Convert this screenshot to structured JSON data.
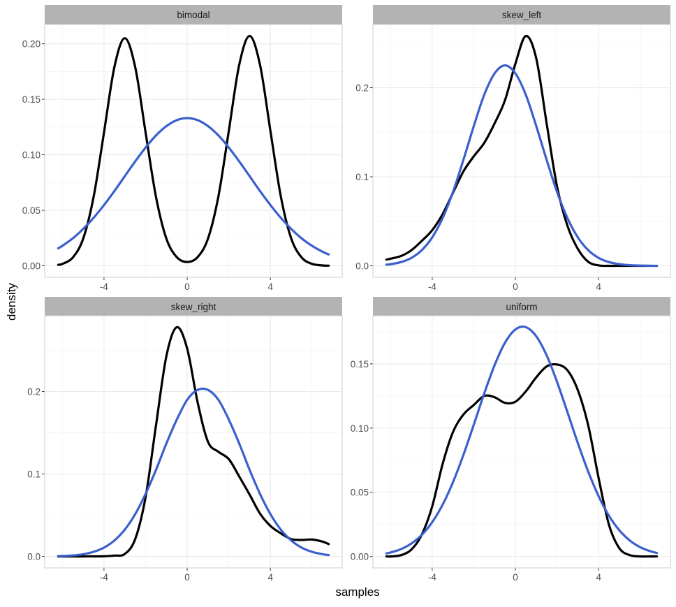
{
  "chart_data": {
    "type": "line",
    "layout": "facet-wrap 2x2",
    "xlabel": "samples",
    "ylabel": "density",
    "xlim": [
      -6.85,
      7.45
    ],
    "x_ticks": [
      -4,
      0,
      4
    ],
    "grid": true,
    "legend": "none",
    "colors": {
      "empirical": "#000000",
      "normal": "#3A5FCD",
      "strip": "#B3B3B3"
    },
    "x": [
      -6.2,
      -6,
      -5.5,
      -5,
      -4.5,
      -4,
      -3.5,
      -3,
      -2.5,
      -2,
      -1.5,
      -1,
      -0.5,
      0,
      0.5,
      1,
      1.5,
      2,
      2.5,
      3,
      3.5,
      4,
      4.5,
      5,
      5.5,
      6,
      6.5,
      6.8
    ],
    "panels": [
      {
        "title": "bimodal",
        "ylim": [
          -0.0104,
          0.2174
        ],
        "y_ticks": [
          0,
          0.05,
          0.1,
          0.15,
          0.2
        ],
        "y_tick_labels": [
          "0.00",
          "0.05",
          "0.10",
          "0.15",
          "0.20"
        ],
        "series": [
          {
            "color": "#000000",
            "values": [
              0.0009,
              0.0017,
              0.0074,
              0.0244,
              0.0619,
              0.12,
              0.179,
              0.205,
              0.179,
              0.12,
              0.062,
              0.0244,
              0.0077,
              0.0034,
              0.0077,
              0.0245,
              0.0625,
              0.1215,
              0.181,
              0.207,
              0.181,
              0.1215,
              0.0625,
              0.0246,
              0.0075,
              0.0017,
              0.0003,
              0.0001
            ]
          },
          {
            "color": "#3A5FCD",
            "values": [
              0.0157,
              0.018,
              0.0247,
              0.0332,
              0.0432,
              0.0547,
              0.0673,
              0.0807,
              0.094,
              0.1065,
              0.1174,
              0.1258,
              0.1312,
              0.133,
              0.1312,
              0.1258,
              0.1174,
              0.1065,
              0.094,
              0.0807,
              0.0673,
              0.0547,
              0.0432,
              0.0332,
              0.0247,
              0.018,
              0.0127,
              0.0102
            ]
          }
        ]
      },
      {
        "title": "skew_left",
        "ylim": [
          -0.0129,
          0.271
        ],
        "y_ticks": [
          0,
          0.1,
          0.2
        ],
        "y_tick_labels": [
          "0.0",
          "0.1",
          "0.2"
        ],
        "series": [
          {
            "color": "#000000",
            "values": [
              0.007,
              0.008,
              0.011,
              0.0175,
              0.028,
              0.04,
              0.058,
              0.082,
              0.106,
              0.123,
              0.138,
              0.16,
              0.186,
              0.227,
              0.258,
              0.233,
              0.16,
              0.089,
              0.045,
              0.019,
              0.0045,
              0.0005,
              0,
              0,
              0,
              0,
              0,
              0
            ]
          },
          {
            "color": "#3A5FCD",
            "values": [
              0.0013,
              0.0018,
              0.0042,
              0.0089,
              0.0176,
              0.0319,
              0.0536,
              0.083,
              0.119,
              0.157,
              0.192,
              0.216,
              0.225,
              0.216,
              0.192,
              0.157,
              0.119,
              0.083,
              0.0536,
              0.0319,
              0.0176,
              0.0089,
              0.0042,
              0.0018,
              0.0007,
              0.0003,
              0.0001,
              0
            ]
          }
        ]
      },
      {
        "title": "skew_right",
        "ylim": [
          -0.0139,
          0.292
        ],
        "y_ticks": [
          0,
          0.1,
          0.2
        ],
        "y_tick_labels": [
          "0.0",
          "0.1",
          "0.2"
        ],
        "series": [
          {
            "color": "#000000",
            "values": [
              0,
              0,
              0,
              0,
              0.0001,
              0.0002,
              0.001,
              0.003,
              0.021,
              0.072,
              0.159,
              0.243,
              0.278,
              0.252,
              0.187,
              0.139,
              0.127,
              0.118,
              0.097,
              0.075,
              0.052,
              0.037,
              0.028,
              0.021,
              0.02,
              0.0205,
              0.018,
              0.015
            ]
          },
          {
            "color": "#3A5FCD",
            "values": [
              0.0004,
              0.0005,
              0.0012,
              0.0027,
              0.0056,
              0.0107,
              0.0193,
              0.0325,
              0.0513,
              0.0759,
              0.105,
              0.137,
              0.166,
              0.19,
              0.202,
              0.202,
              0.19,
              0.166,
              0.137,
              0.105,
              0.0759,
              0.0513,
              0.0325,
              0.0193,
              0.0107,
              0.0056,
              0.0027,
              0.0017
            ]
          }
        ]
      },
      {
        "title": "uniform",
        "ylim": [
          -0.0089,
          0.1875
        ],
        "y_ticks": [
          0,
          0.05,
          0.1,
          0.15
        ],
        "y_tick_labels": [
          "0.00",
          "0.05",
          "0.10",
          "0.15"
        ],
        "series": [
          {
            "color": "#000000",
            "values": [
              0,
              0,
              0.001,
              0.0054,
              0.017,
              0.039,
              0.072,
              0.097,
              0.1105,
              0.118,
              0.125,
              0.124,
              0.1196,
              0.1205,
              0.1286,
              0.1395,
              0.148,
              0.1495,
              0.145,
              0.1295,
              0.102,
              0.061,
              0.0245,
              0.0063,
              0.001,
              0,
              0,
              0
            ]
          },
          {
            "color": "#3A5FCD",
            "values": [
              0.0024,
              0.0031,
              0.0057,
              0.0101,
              0.0168,
              0.0267,
              0.0403,
              0.0579,
              0.0791,
              0.1027,
              0.1269,
              0.149,
              0.1665,
              0.1768,
              0.1786,
              0.1715,
              0.1567,
              0.136,
              0.1124,
              0.0883,
              0.066,
              0.0469,
              0.0316,
              0.0203,
              0.0124,
              0.0072,
              0.004,
              0.0027
            ]
          }
        ]
      }
    ]
  }
}
